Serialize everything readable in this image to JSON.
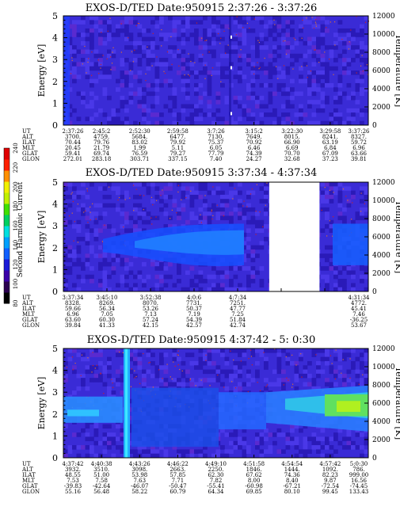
{
  "colorbar": {
    "label": "Second Harmonic Current",
    "ticks": [
      "80",
      "100",
      "120",
      "140",
      "160",
      "180",
      "200",
      "220",
      "240"
    ],
    "colors": [
      "#000000",
      "#2b0050",
      "#3b00a8",
      "#1a1ad8",
      "#1060ff",
      "#00a0ff",
      "#00e0e0",
      "#00d060",
      "#40e000",
      "#c0f000",
      "#f0f000",
      "#ff9000",
      "#ff2000",
      "#e00000"
    ]
  },
  "chart_data": [
    {
      "type": "heatmap",
      "title": "EXOS-D/TED   Date:950915  2:37:26 - 3:37:26",
      "ylabel": "Energy [eV]",
      "y2label": "Temperature [K]",
      "yticks": [
        "0",
        "1",
        "2",
        "3",
        "4",
        "5"
      ],
      "y2ticks": [
        "0",
        "2000",
        "4000",
        "6000",
        "8000",
        "10000",
        "12000"
      ],
      "ylim": [
        0,
        5
      ],
      "y2lim": [
        0,
        12000
      ],
      "gap": null,
      "band_intensity": 0,
      "orbit_rows": [
        {
          "name": "UT",
          "values": [
            "2:37:26",
            "2:45:2",
            "2:52:30",
            "2:59:58",
            "3:7:26",
            "3:15:2",
            "3:22:30",
            "3:29:58",
            "3:37:26"
          ]
        },
        {
          "name": "ALT",
          "values": [
            "3700.",
            "4759.",
            "5684.",
            "6477.",
            "7130.",
            "7649.",
            "8015.",
            "8241.",
            "8327."
          ]
        },
        {
          "name": "ILAT",
          "values": [
            "70.44",
            "79.76",
            "83.02",
            "79.92",
            "75.37",
            "70.92",
            "66.90",
            "63.19",
            "59.72"
          ]
        },
        {
          "name": "MLT",
          "values": [
            "20.45",
            "21.79",
            "1.99",
            "5.11",
            "6.05",
            "6.46",
            "6.69",
            "6.84",
            "6.96"
          ]
        },
        {
          "name": "GLAT",
          "values": [
            "59.41",
            "69.74",
            "76.59",
            "79.27",
            "77.79",
            "74.39",
            "70.70",
            "67.09",
            "63.66"
          ]
        },
        {
          "name": "GLON",
          "values": [
            "272.01",
            "283.18",
            "303.71",
            "337.15",
            "7.40",
            "24.27",
            "32.68",
            "37.23",
            "39.81"
          ]
        }
      ]
    },
    {
      "type": "heatmap",
      "title": "EXOS-D/TED   Date:950915  3:37:34 - 4:37:34",
      "ylabel": "Energy [eV]",
      "y2label": "Temperature [K]",
      "yticks": [
        "0",
        "1",
        "2",
        "3",
        "4",
        "5"
      ],
      "y2ticks": [
        "0",
        "2000",
        "4000",
        "6000",
        "8000",
        "10000",
        "12000"
      ],
      "ylim": [
        0,
        5
      ],
      "y2lim": [
        0,
        12000
      ],
      "gap": [
        0.675,
        0.84
      ],
      "band_intensity": 1,
      "orbit_rows": [
        {
          "name": "UT",
          "values": [
            "3:37:34",
            "3:45:10",
            "3:52:38",
            "4:0:6",
            "4:7:34",
            "",
            "",
            "4:31:34"
          ]
        },
        {
          "name": "ALT",
          "values": [
            "8328.",
            "8269.",
            "8070.",
            "7731.",
            "7251.",
            "",
            "",
            "4772."
          ]
        },
        {
          "name": "ILAT",
          "values": [
            "59.66",
            "56.34",
            "53.26",
            "50.37",
            "47.77",
            "",
            "",
            "45.41"
          ]
        },
        {
          "name": "MLT",
          "values": [
            "6.96",
            "7.05",
            "7.13",
            "7.19",
            "7.25",
            "",
            "",
            "7.46"
          ]
        },
        {
          "name": "GLAT",
          "values": [
            "63.60",
            "60.30",
            "57.24",
            "54.39",
            "51.84",
            "",
            "",
            "-36.25"
          ]
        },
        {
          "name": "GLON",
          "values": [
            "39.84",
            "41.33",
            "42.15",
            "42.57",
            "42.74",
            "",
            "",
            "53.67"
          ]
        }
      ]
    },
    {
      "type": "heatmap",
      "title": "EXOS-D/TED   Date:950915  4:37:42 - 5: 0:30",
      "ylabel": "Energy [eV]",
      "y2label": "Temperature [K]",
      "yticks": [
        "0",
        "1",
        "2",
        "3",
        "4",
        "5"
      ],
      "y2ticks": [
        "0",
        "2000",
        "4000",
        "6000",
        "8000",
        "10000",
        "12000"
      ],
      "ylim": [
        0,
        5
      ],
      "y2lim": [
        0,
        12000
      ],
      "gap": null,
      "band_intensity": 2,
      "orbit_rows": [
        {
          "name": "UT",
          "values": [
            "4:37:42",
            "4:40:38",
            "4:43:26",
            "4:46:22",
            "4:49:10",
            "4:51:58",
            "4:54:54",
            "4:57:42",
            "5:0:30"
          ]
        },
        {
          "name": "ALT",
          "values": [
            "3932.",
            "3510.",
            "3098.",
            "2663.",
            "2250.",
            "1846.",
            "1444.",
            "1092.",
            "786."
          ]
        },
        {
          "name": "ILAT",
          "values": [
            "48.55",
            "51.00",
            "53.98",
            "57.85",
            "62.30",
            "67.62",
            "74.36",
            "82.23",
            "999.00"
          ]
        },
        {
          "name": "MLT",
          "values": [
            "7.53",
            "7.58",
            "7.63",
            "7.71",
            "7.82",
            "8.00",
            "8.40",
            "9.87",
            "16.56"
          ]
        },
        {
          "name": "GLAT",
          "values": [
            "-39.83",
            "-42.64",
            "-46.07",
            "-50.47",
            "-55.41",
            "-60.98",
            "-67.21",
            "-72.54",
            "-74.45"
          ]
        },
        {
          "name": "GLON",
          "values": [
            "55.16",
            "56.48",
            "58.22",
            "60.79",
            "64.34",
            "69.85",
            "80.10",
            "99.45",
            "133.43"
          ]
        }
      ]
    }
  ]
}
